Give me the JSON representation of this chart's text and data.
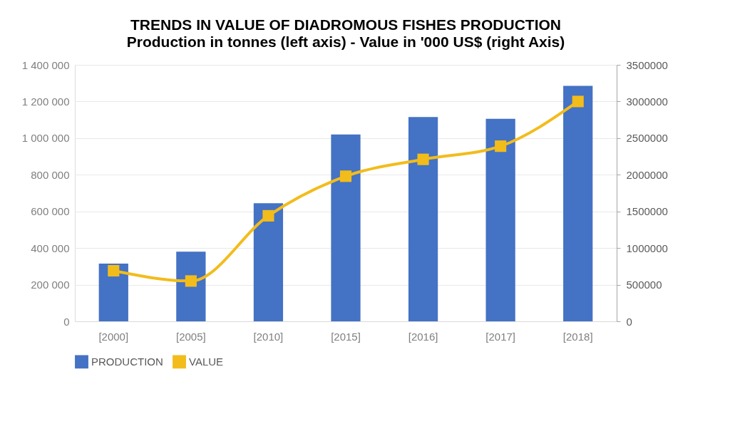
{
  "chart_data": {
    "type": "bar",
    "title": "TRENDS IN VALUE OF DIADROMOUS FISHES PRODUCTION",
    "subtitle": "Production in tonnes (left axis) - Value in '000 US$ (right Axis)",
    "categories": [
      "[2000]",
      "[2005]",
      "[2010]",
      "[2015]",
      "[2016]",
      "[2017]",
      "[2018]"
    ],
    "series": [
      {
        "name": "PRODUCTION",
        "color": "#4472c4",
        "values": [
          315000,
          380000,
          645000,
          1020000,
          1115000,
          1105000,
          1285000
        ]
      },
      {
        "name": "VALUE",
        "type": "line",
        "axis": "y2",
        "color": "#f2bc1b",
        "values": [
          690000,
          550000,
          1440000,
          1980000,
          2210000,
          2390000,
          3000000
        ]
      }
    ],
    "ylim": [
      0,
      1400000
    ],
    "yticks": [
      {
        "value": 0,
        "label": "0"
      },
      {
        "value": 200000,
        "label": "200 000"
      },
      {
        "value": 400000,
        "label": "400 000"
      },
      {
        "value": 600000,
        "label": "600 000"
      },
      {
        "value": 800000,
        "label": "800 000"
      },
      {
        "value": 1000000,
        "label": "1 000 000"
      },
      {
        "value": 1200000,
        "label": "1 200 000"
      },
      {
        "value": 1400000,
        "label": "1 400 000"
      }
    ],
    "y2lim": [
      0,
      3500000
    ],
    "y2ticks": [
      0,
      500000,
      1000000,
      1500000,
      2000000,
      2500000,
      3000000,
      3500000
    ],
    "grid": "y",
    "legend": "bottom",
    "marker": "square",
    "line_style": "solid"
  }
}
